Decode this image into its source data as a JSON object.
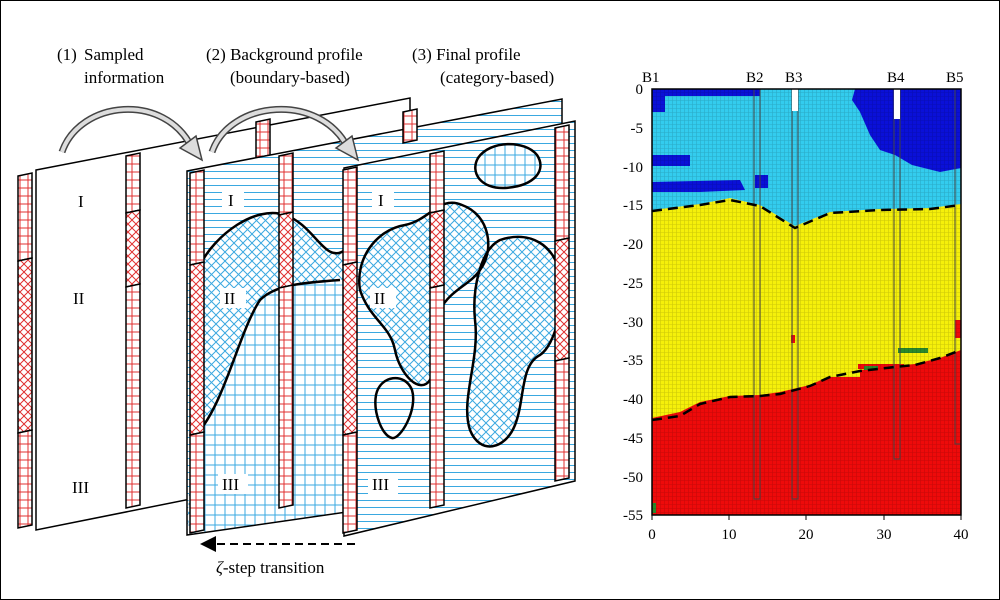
{
  "left_panel": {
    "step1_num": "(1)",
    "step1_line1": "Sampled",
    "step1_line2": "information",
    "step2_line1": "(2) Background profile",
    "step2_line2": "(boundary-based)",
    "step3_line1": "(3) Final profile",
    "step3_line2": "(category-based)",
    "layer_1": "I",
    "layer_2": "II",
    "layer_3": "III",
    "transition_zeta": "ζ",
    "transition_rest": "-step transition"
  },
  "right_panel": {
    "boreholes": [
      "B1",
      "B2",
      "B3",
      "B4",
      "B5"
    ],
    "x_ticks": [
      "0",
      "10",
      "20",
      "30",
      "40"
    ],
    "y_ticks": [
      "0",
      "-5",
      "-10",
      "-15",
      "-20",
      "-25",
      "-30",
      "-35",
      "-40",
      "-45",
      "-50",
      "-55"
    ]
  },
  "colors": {
    "hatch_red": "#e03030",
    "hatch_blue": "#3aa8e0",
    "layer_top_light": "#33ccee",
    "layer_top_dark": "#0a10d8",
    "layer_middle": "#f5f00a",
    "layer_bottom": "#ee0a0a",
    "green_lens": "#2a8a2a"
  }
}
